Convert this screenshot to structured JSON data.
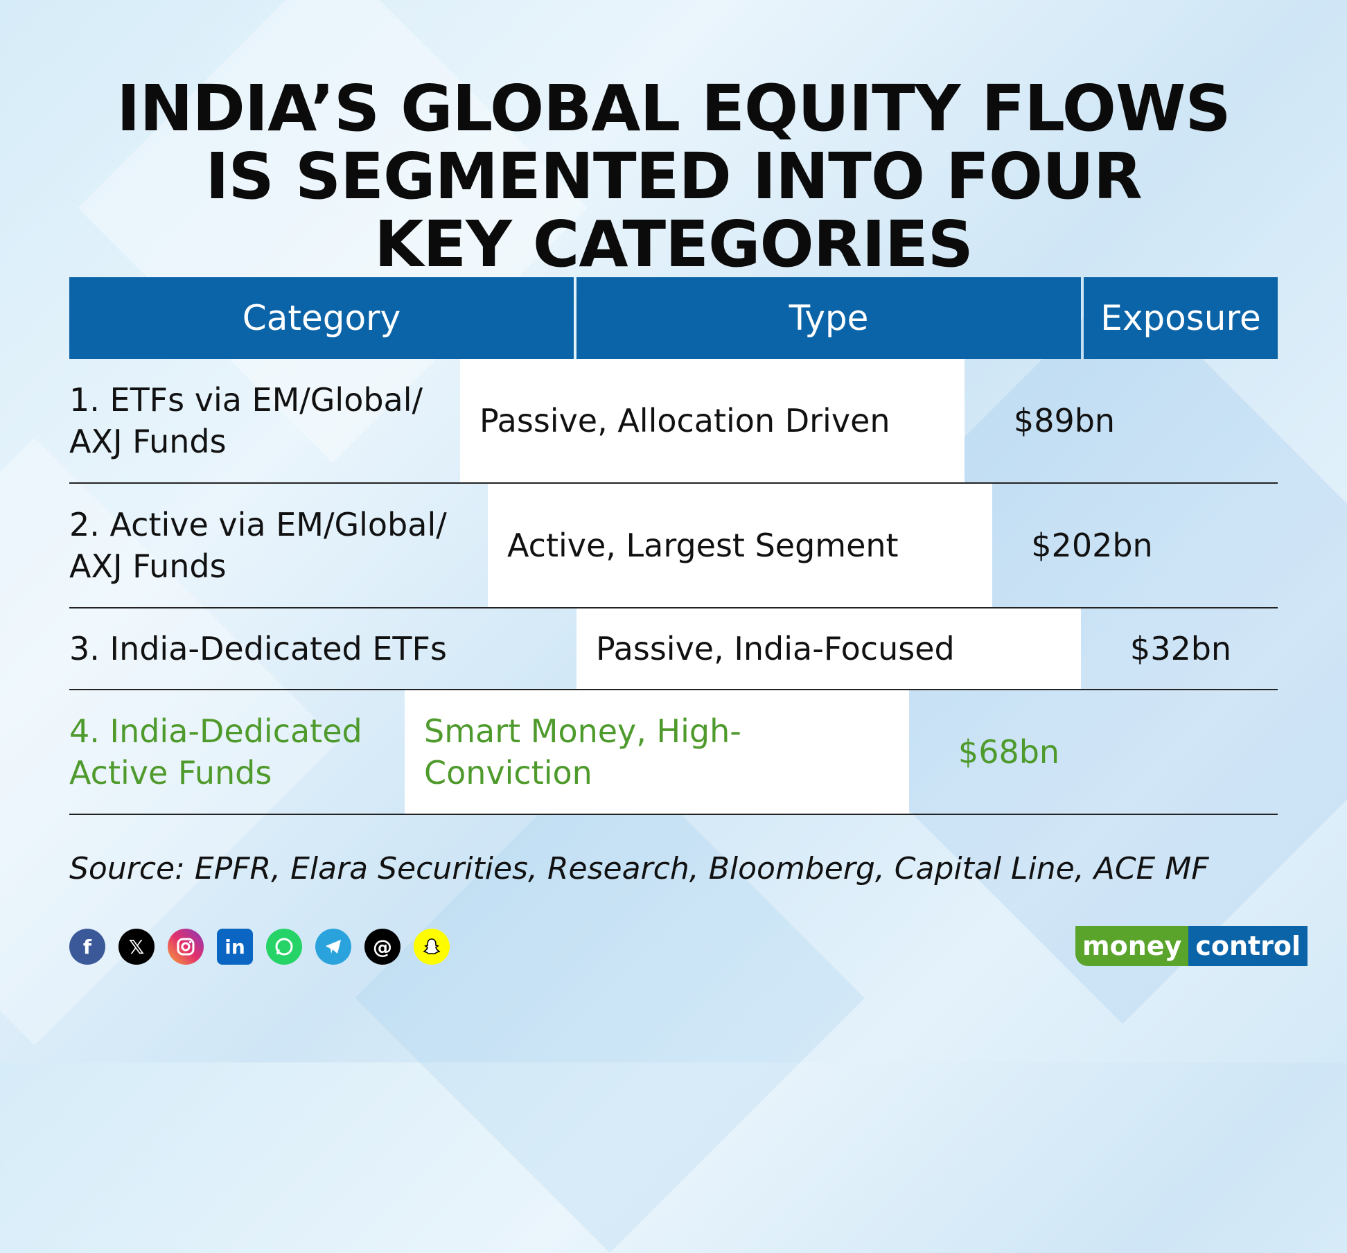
{
  "title": {
    "line1": "INDIA’S GLOBAL EQUITY FLOWS",
    "line2": "IS SEGMENTED INTO FOUR",
    "line3": "KEY CATEGORIES"
  },
  "table": {
    "headers": [
      "Category",
      "Type",
      "Exposure"
    ],
    "rows": [
      {
        "category": "1. ETFs via EM/Global/ AXJ Funds",
        "type": "Passive, Allocation Driven",
        "exposure": "$89bn"
      },
      {
        "category": "2. Active via EM/Global/ AXJ Funds",
        "type": "Active, Largest Segment",
        "exposure": "$202bn"
      },
      {
        "category": "3. India-Dedicated ETFs",
        "type": "Passive, India-Focused",
        "exposure": "$32bn"
      },
      {
        "category": "4. India-Dedicated Active Funds",
        "type": "Smart Money, High-Conviction",
        "exposure": "$68bn"
      }
    ]
  },
  "source": "Source: EPFR, Elara Securities, Research, Bloomberg, Capital Line, ACE MF",
  "social_icons": [
    "facebook-icon",
    "x-icon",
    "instagram-icon",
    "linkedin-icon",
    "whatsapp-icon",
    "telegram-icon",
    "threads-icon",
    "snapchat-icon"
  ],
  "logo": {
    "part1": "money",
    "part2": "control"
  },
  "colors": {
    "header_blue": "#0c64a8",
    "highlight_green": "#4f9a2c",
    "logo_green": "#5aa42c"
  }
}
